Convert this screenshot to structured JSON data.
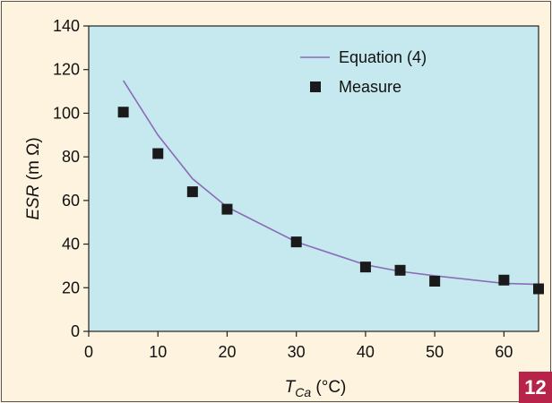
{
  "chart_data": {
    "type": "line",
    "xlabel": {
      "main": "T",
      "sub": "Ca",
      "unit": " (°C)"
    },
    "ylabel": {
      "main": "ESR",
      "unit": " (m Ω)"
    },
    "xlim": [
      0,
      65
    ],
    "ylim": [
      0,
      140
    ],
    "x_ticks": [
      0,
      10,
      20,
      30,
      40,
      50,
      60
    ],
    "y_ticks": [
      0,
      20,
      40,
      60,
      80,
      100,
      120,
      140
    ],
    "grid": false,
    "legend_position": "top-right",
    "series": [
      {
        "name": "Equation (4)",
        "kind": "line",
        "color": "#8c6bb8",
        "x": [
          5,
          10,
          15,
          20,
          30,
          40,
          45,
          50,
          60,
          65
        ],
        "y": [
          115,
          90,
          70,
          57,
          41,
          30.5,
          27.5,
          25.5,
          22,
          21.5
        ]
      },
      {
        "name": "Measure",
        "kind": "scatter",
        "marker": "square",
        "color": "#1a1a1a",
        "x": [
          5,
          10,
          15,
          20,
          30,
          40,
          45,
          50,
          60,
          65
        ],
        "y": [
          100.5,
          81.5,
          64,
          56,
          41,
          29.5,
          28,
          23,
          23.5,
          19.5
        ]
      }
    ],
    "plot_background": "#c5e9ee",
    "page_background": "#fdf3de"
  },
  "badge": {
    "text": "12",
    "color": "#b8234a"
  }
}
